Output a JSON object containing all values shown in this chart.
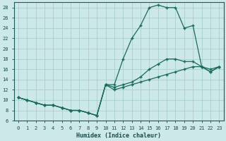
{
  "xlabel": "Humidex (Indice chaleur)",
  "bg_color": "#cce8e8",
  "grid_color": "#aacece",
  "line_color": "#1a6a5a",
  "xlim_min": -0.5,
  "xlim_max": 23.5,
  "ylim_min": 6,
  "ylim_max": 29,
  "xticks": [
    0,
    1,
    2,
    3,
    4,
    5,
    6,
    7,
    8,
    9,
    10,
    11,
    12,
    13,
    14,
    15,
    16,
    17,
    18,
    19,
    20,
    21,
    22,
    23
  ],
  "yticks": [
    6,
    8,
    10,
    12,
    14,
    16,
    18,
    20,
    22,
    24,
    26,
    28
  ],
  "line_max_x": [
    0,
    1,
    2,
    3,
    4,
    5,
    6,
    7,
    8,
    9,
    10,
    11,
    12,
    13,
    14,
    15,
    16,
    17,
    18,
    19,
    20,
    21,
    22,
    23
  ],
  "line_max_y": [
    10.5,
    10.0,
    9.5,
    9.0,
    9.0,
    8.5,
    8.0,
    8.0,
    7.5,
    7.0,
    13.0,
    13.0,
    18.0,
    22.0,
    24.5,
    28.0,
    28.5,
    28.0,
    28.0,
    24.0,
    24.5,
    16.5,
    15.5,
    16.5
  ],
  "line_mid_x": [
    0,
    1,
    2,
    3,
    4,
    5,
    6,
    7,
    8,
    9,
    10,
    11,
    12,
    13,
    14,
    15,
    16,
    17,
    18,
    19,
    20,
    21,
    22,
    23
  ],
  "line_mid_y": [
    10.5,
    10.0,
    9.5,
    9.0,
    9.0,
    8.5,
    8.0,
    8.0,
    7.5,
    7.0,
    13.0,
    12.5,
    13.0,
    13.5,
    14.5,
    16.0,
    17.0,
    18.0,
    18.0,
    17.5,
    17.5,
    16.5,
    15.5,
    16.5
  ],
  "line_min_x": [
    0,
    1,
    2,
    3,
    4,
    5,
    6,
    7,
    8,
    9,
    10,
    11,
    12,
    13,
    14,
    15,
    16,
    17,
    18,
    19,
    20,
    21,
    22,
    23
  ],
  "line_min_y": [
    10.5,
    10.0,
    9.5,
    9.0,
    9.0,
    8.5,
    8.0,
    8.0,
    7.5,
    7.0,
    13.0,
    12.0,
    12.5,
    13.0,
    13.5,
    14.0,
    14.5,
    15.0,
    15.5,
    16.0,
    16.5,
    16.5,
    16.0,
    16.5
  ]
}
